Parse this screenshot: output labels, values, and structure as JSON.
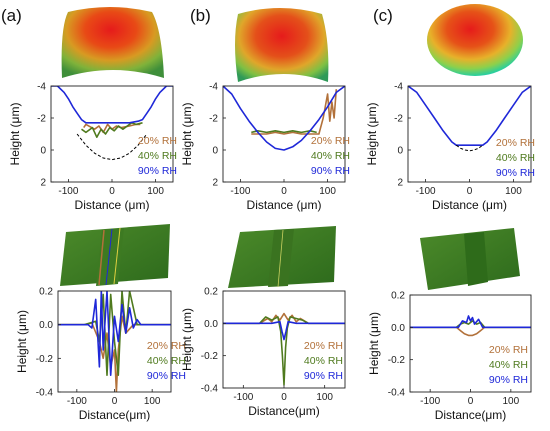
{
  "panel_labels": [
    "(a)",
    "(b)",
    "(c)"
  ],
  "legend": {
    "labels": [
      "20% RH",
      "40% RH",
      "90% RH"
    ],
    "colors": [
      "#b2713a",
      "#4f7a1e",
      "#1f28d8"
    ]
  },
  "chart_data": [
    {
      "type": "line",
      "panel": "(a)",
      "position": "top",
      "xlabel": "Distance (μm)",
      "ylabel": "Height (μm)",
      "xlim": [
        -140,
        140
      ],
      "ylim": [
        -4,
        2
      ],
      "y_inverted": true,
      "xticks": [
        -100,
        0,
        100
      ],
      "yticks": [
        -4,
        -2,
        0,
        2
      ],
      "xtick_labels": [
        "-100",
        "0",
        "100"
      ],
      "ytick_labels": [
        "-4",
        "-2",
        "0",
        "2"
      ],
      "series": [
        {
          "name": "20% RH",
          "color": "#b2713a",
          "x": [
            -65,
            -60,
            -40,
            -30,
            -20,
            -10,
            0,
            10,
            20,
            40,
            55,
            65
          ],
          "y": [
            -1.4,
            -1.6,
            -1.3,
            -1.5,
            -1.1,
            -1.6,
            -1.3,
            -1.5,
            -1.4,
            -1.5,
            -1.6,
            -1.6
          ]
        },
        {
          "name": "40% RH",
          "color": "#4f7a1e",
          "x": [
            -70,
            -60,
            -45,
            -35,
            -25,
            -15,
            -5,
            5,
            15,
            25,
            35,
            45,
            55,
            70
          ],
          "y": [
            -1.3,
            -1.1,
            -1.4,
            -0.8,
            -1.3,
            -1.0,
            -1.4,
            -1.2,
            -1.5,
            -1.3,
            -1.5,
            -1.7,
            -1.6,
            -1.7
          ]
        },
        {
          "name": "90% RH",
          "color": "#1f28d8",
          "x": [
            -140,
            -125,
            -110,
            -100,
            -90,
            -80,
            -70,
            -60,
            -40,
            0,
            40,
            60,
            70,
            80,
            90,
            100,
            110,
            125,
            140
          ],
          "y": [
            -4,
            -4,
            -3.6,
            -3.2,
            -2.7,
            -2.3,
            -1.9,
            -1.7,
            -1.7,
            -1.7,
            -1.7,
            -1.8,
            -1.9,
            -2.3,
            -2.7,
            -3.2,
            -3.6,
            -4,
            -4
          ]
        },
        {
          "name": "",
          "color": "#000000",
          "dashed": true,
          "x": [
            -80,
            -60,
            -40,
            -20,
            0,
            20,
            40,
            60,
            80
          ],
          "y": [
            -1.0,
            -0.3,
            0.2,
            0.5,
            0.6,
            0.5,
            0.2,
            -0.3,
            -1.0
          ]
        }
      ]
    },
    {
      "type": "line",
      "panel": "(b)",
      "position": "top",
      "xlabel": "Distance (μm)",
      "ylabel": "Height (μm)",
      "xlim": [
        -140,
        140
      ],
      "ylim": [
        -4,
        2
      ],
      "y_inverted": true,
      "xticks": [
        -100,
        0,
        100
      ],
      "yticks": [
        -4,
        -2,
        0,
        2
      ],
      "xtick_labels": [
        "-100",
        "0",
        "100"
      ],
      "ytick_labels": [
        "-4",
        "-2",
        "0",
        "2"
      ],
      "series": [
        {
          "name": "20% RH",
          "color": "#b2713a",
          "x": [
            -75,
            -60,
            -40,
            -20,
            0,
            20,
            40,
            60,
            80,
            90,
            100,
            105,
            110,
            115,
            120
          ],
          "y": [
            -1.0,
            -1.0,
            -1.0,
            -1.1,
            -1.0,
            -1.1,
            -1.0,
            -1.0,
            -1.0,
            -2.0,
            -3.5,
            -1.8,
            -3.0,
            -2.0,
            -3.8
          ]
        },
        {
          "name": "40% RH",
          "color": "#4f7a1e",
          "x": [
            -75,
            -60,
            -40,
            -20,
            0,
            20,
            40,
            60,
            75
          ],
          "y": [
            -1.1,
            -1.2,
            -1.1,
            -1.2,
            -1.1,
            -1.2,
            -1.1,
            -1.2,
            -1.1
          ]
        },
        {
          "name": "90% RH",
          "color": "#1f28d8",
          "x": [
            -140,
            -120,
            -100,
            -80,
            -60,
            -40,
            -20,
            0,
            20,
            40,
            60,
            80,
            100,
            120,
            140
          ],
          "y": [
            -4,
            -3.5,
            -2.6,
            -1.8,
            -1.1,
            -0.5,
            -0.1,
            0.0,
            -0.2,
            -0.6,
            -1.2,
            -1.9,
            -2.7,
            -3.6,
            -4
          ]
        }
      ]
    },
    {
      "type": "line",
      "panel": "(c)",
      "position": "top",
      "xlabel": "Distance (μm)",
      "ylabel": "Height (μm)",
      "xlim": [
        -140,
        140
      ],
      "ylim": [
        -4,
        2
      ],
      "y_inverted": true,
      "xticks": [
        -100,
        0,
        100
      ],
      "yticks": [
        -4,
        -2,
        0,
        2
      ],
      "xtick_labels": [
        "-100",
        "0",
        "100"
      ],
      "ytick_labels": [
        "-4",
        "-2",
        "0",
        "2"
      ],
      "series": [
        {
          "name": "90% RH",
          "color": "#1f28d8",
          "x": [
            -140,
            -120,
            -100,
            -80,
            -60,
            -40,
            -30,
            0,
            30,
            40,
            60,
            80,
            100,
            120,
            140
          ],
          "y": [
            -4,
            -3.6,
            -2.8,
            -2.0,
            -1.2,
            -0.5,
            -0.3,
            -0.3,
            -0.3,
            -0.5,
            -1.2,
            -2.0,
            -2.8,
            -3.6,
            -4
          ]
        },
        {
          "name": "",
          "color": "#000000",
          "dashed": true,
          "x": [
            -30,
            -20,
            -10,
            0,
            10,
            20,
            30
          ],
          "y": [
            -0.3,
            -0.1,
            0.0,
            0.05,
            0.0,
            -0.1,
            -0.3
          ]
        }
      ]
    },
    {
      "type": "line",
      "panel": "(a)",
      "position": "bottom",
      "xlabel": "Distance(μm)",
      "ylabel": "Height (μm)",
      "xlim": [
        -150,
        150
      ],
      "ylim": [
        -0.4,
        0.2
      ],
      "xticks": [
        -100,
        0,
        100
      ],
      "yticks": [
        -0.4,
        -0.2,
        0.0,
        0.2
      ],
      "xtick_labels": [
        "-100",
        "0",
        "100"
      ],
      "ytick_labels": [
        "-0.4",
        "-0.2",
        "0.0",
        "0.2"
      ],
      "series": [
        {
          "name": "20% RH",
          "color": "#b2713a",
          "x": [
            -150,
            -80,
            -60,
            -40,
            -30,
            -20,
            -10,
            0,
            5,
            10,
            20,
            30,
            50,
            80,
            150
          ],
          "y": [
            0,
            0,
            0.01,
            -0.1,
            -0.2,
            -0.05,
            -0.25,
            -0.15,
            -0.4,
            -0.15,
            0.05,
            -0.05,
            0,
            0,
            0
          ]
        },
        {
          "name": "40% RH",
          "color": "#4f7a1e",
          "x": [
            -150,
            -80,
            -50,
            -40,
            -30,
            -20,
            -10,
            0,
            10,
            20,
            30,
            40,
            60,
            150
          ],
          "y": [
            0,
            0,
            0.02,
            -0.1,
            0.18,
            -0.3,
            0.18,
            -0.1,
            -0.3,
            0.2,
            -0.05,
            0.2,
            0,
            0
          ]
        },
        {
          "name": "90% RH",
          "color": "#1f28d8",
          "x": [
            -150,
            -70,
            -60,
            -50,
            -40,
            -35,
            -30,
            -20,
            -10,
            0,
            10,
            20,
            30,
            40,
            50,
            60,
            70,
            150
          ],
          "y": [
            0,
            0,
            -0.02,
            0.15,
            -0.25,
            0.2,
            -0.15,
            0.2,
            -0.3,
            0.05,
            -0.1,
            0.12,
            -0.05,
            0.1,
            -0.02,
            0.03,
            0,
            0
          ]
        }
      ]
    },
    {
      "type": "line",
      "panel": "(b)",
      "position": "bottom",
      "xlabel": "Distance(μm)",
      "ylabel": "Height (μm)",
      "xlim": [
        -150,
        150
      ],
      "ylim": [
        -0.4,
        0.2
      ],
      "xticks": [
        -100,
        0,
        100
      ],
      "yticks": [
        -0.4,
        -0.2,
        0.0,
        0.2
      ],
      "xtick_labels": [
        "-100",
        "0",
        "100"
      ],
      "ytick_labels": [
        "-0.4",
        "-0.2",
        "0.0",
        "0.2"
      ],
      "series": [
        {
          "name": "20% RH",
          "color": "#b2713a",
          "x": [
            -150,
            -60,
            -40,
            -30,
            -20,
            -10,
            0,
            10,
            20,
            30,
            40,
            60,
            150
          ],
          "y": [
            0,
            0,
            0.03,
            0.01,
            0.05,
            0.02,
            0.06,
            0.02,
            0.05,
            0.01,
            0.03,
            0,
            0
          ]
        },
        {
          "name": "40% RH",
          "color": "#4f7a1e",
          "x": [
            -150,
            -60,
            -45,
            -30,
            -15,
            -8,
            -4,
            0,
            4,
            8,
            15,
            30,
            45,
            60,
            150
          ],
          "y": [
            0,
            0,
            0.04,
            0.02,
            0.04,
            -0.05,
            -0.2,
            -0.38,
            -0.15,
            -0.03,
            0.04,
            0.03,
            0.02,
            0,
            0
          ]
        },
        {
          "name": "90% RH",
          "color": "#1f28d8",
          "x": [
            -150,
            -30,
            -10,
            -5,
            0,
            5,
            10,
            30,
            150
          ],
          "y": [
            0,
            0,
            0.01,
            -0.05,
            -0.1,
            -0.05,
            0.01,
            0,
            0
          ]
        }
      ]
    },
    {
      "type": "line",
      "panel": "(c)",
      "position": "bottom",
      "xlabel": "Distance(μm)",
      "ylabel": "Height (μm)",
      "xlim": [
        -150,
        150
      ],
      "ylim": [
        -0.4,
        0.2
      ],
      "xticks": [
        -100,
        0,
        100
      ],
      "yticks": [
        -0.4,
        -0.2,
        0.0,
        0.2
      ],
      "xtick_labels": [
        "-100",
        "0",
        "100"
      ],
      "ytick_labels": [
        "-0.4",
        "-0.2",
        "0.0",
        "0.2"
      ],
      "series": [
        {
          "name": "20% RH",
          "color": "#b2713a",
          "x": [
            -150,
            -35,
            -25,
            -15,
            -5,
            5,
            15,
            25,
            35,
            150
          ],
          "y": [
            0,
            0,
            -0.02,
            -0.04,
            -0.05,
            -0.05,
            -0.04,
            -0.02,
            0,
            0
          ]
        },
        {
          "name": "40% RH",
          "color": "#4f7a1e",
          "x": [
            -150,
            -35,
            -25,
            -15,
            -5,
            5,
            15,
            25,
            35,
            150
          ],
          "y": [
            0,
            0,
            0.02,
            0.03,
            0.02,
            0.04,
            0.02,
            0.03,
            0,
            0
          ]
        },
        {
          "name": "90% RH",
          "color": "#1f28d8",
          "x": [
            -150,
            -30,
            -20,
            -10,
            -5,
            0,
            5,
            10,
            20,
            30,
            150
          ],
          "y": [
            0,
            0,
            0.04,
            0.03,
            0.07,
            0.04,
            0.06,
            0.02,
            0.05,
            0,
            0
          ]
        }
      ]
    }
  ]
}
